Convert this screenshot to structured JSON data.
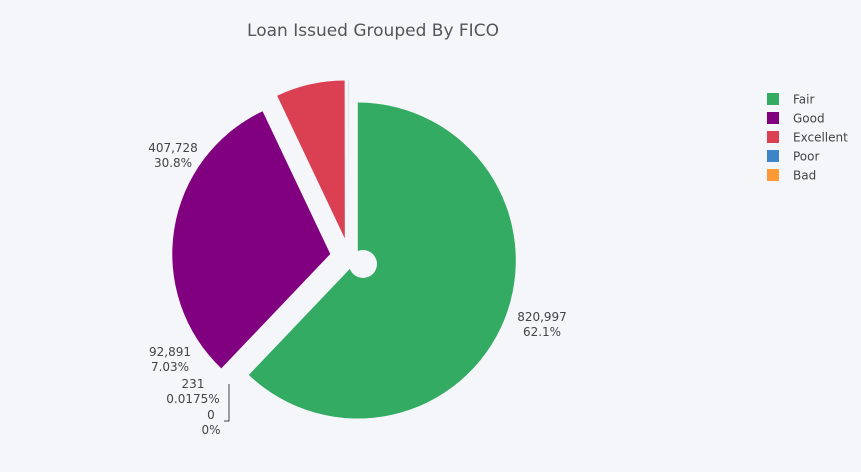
{
  "chart_data": {
    "type": "pie",
    "title": "Loan Issued Grouped By FICO",
    "legend_position": "top-right",
    "slices": [
      {
        "name": "Fair",
        "value": 820997,
        "value_label": "820,997",
        "percent_label": "62.1%",
        "color": "#34ab62",
        "pull": 0.06
      },
      {
        "name": "Good",
        "value": 407728,
        "value_label": "407,728",
        "percent_label": "30.8%",
        "color": "#800080",
        "pull": 0.12
      },
      {
        "name": "Excellent",
        "value": 92891,
        "value_label": "92,891",
        "percent_label": "7.03%",
        "color": "#db4052",
        "pull": 0.12
      },
      {
        "name": "Poor",
        "value": 231,
        "value_label": "231",
        "percent_label": "0.0175%",
        "color": "#3d85c6",
        "pull": 0.12
      },
      {
        "name": "Bad",
        "value": 0,
        "value_label": "0",
        "percent_label": "0%",
        "color": "#fd9a35",
        "pull": 0.12
      }
    ]
  }
}
